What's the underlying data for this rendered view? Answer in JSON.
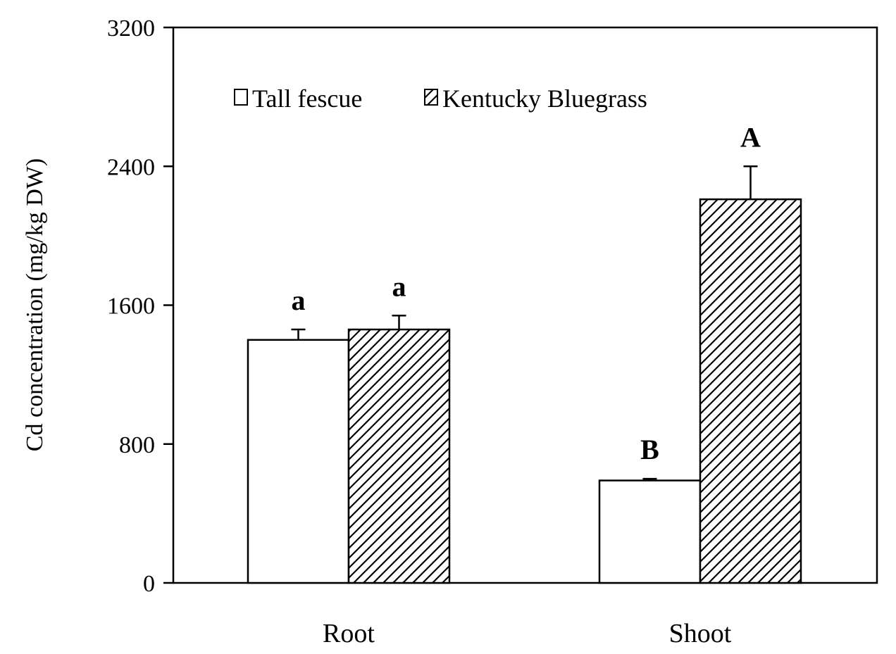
{
  "chart_data": {
    "type": "bar",
    "categories": [
      "Root",
      "Shoot"
    ],
    "series": [
      {
        "name": "Tall fescue",
        "pattern": "solid-white",
        "values": [
          1400,
          590
        ],
        "errors": [
          60,
          10
        ],
        "labels": [
          "a",
          "B"
        ]
      },
      {
        "name": "Kentucky Bluegrass",
        "pattern": "diagonal-hatch",
        "values": [
          1460,
          2210
        ],
        "errors": [
          80,
          190
        ],
        "labels": [
          "a",
          "A"
        ]
      }
    ],
    "ylabel": "Cd concentration (mg/kg DW)",
    "xlabel": "",
    "ylim": [
      0,
      3200
    ],
    "yticks": [
      0,
      800,
      1600,
      2400,
      3200
    ],
    "legend_position": "top-left",
    "grid": false,
    "colors": {
      "bar_fill": "#ffffff",
      "stroke": "#000000",
      "hatch": "#000000"
    }
  }
}
